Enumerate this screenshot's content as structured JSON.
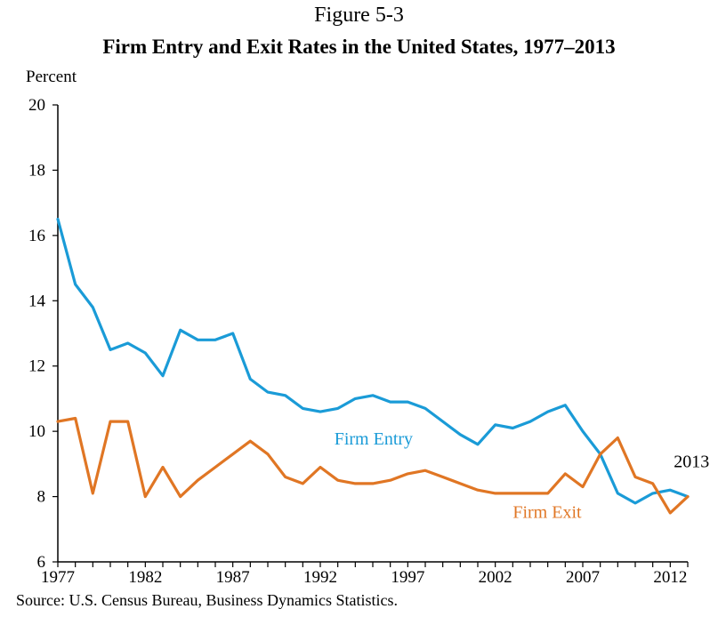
{
  "figure_label": "Figure 5-3",
  "chart_data": {
    "type": "line",
    "title": "Firm Entry and Exit Rates in the United States, 1977–2013",
    "ylabel": "Percent",
    "xlabel": "",
    "xlim": [
      1977,
      2013
    ],
    "ylim": [
      6,
      20
    ],
    "yticks": [
      6,
      8,
      10,
      12,
      14,
      16,
      18,
      20
    ],
    "xticks": [
      1977,
      1982,
      1987,
      1992,
      1997,
      2002,
      2007,
      2012
    ],
    "x": [
      1977,
      1978,
      1979,
      1980,
      1981,
      1982,
      1983,
      1984,
      1985,
      1986,
      1987,
      1988,
      1989,
      1990,
      1991,
      1992,
      1993,
      1994,
      1995,
      1996,
      1997,
      1998,
      1999,
      2000,
      2001,
      2002,
      2003,
      2004,
      2005,
      2006,
      2007,
      2008,
      2009,
      2010,
      2011,
      2012,
      2013
    ],
    "series": [
      {
        "name": "Firm Entry",
        "color": "#1a9bd7",
        "values": [
          16.5,
          14.5,
          13.8,
          12.5,
          12.7,
          12.4,
          11.7,
          13.1,
          12.8,
          12.8,
          13.0,
          11.6,
          11.2,
          11.1,
          10.7,
          10.6,
          10.7,
          11.0,
          11.1,
          10.9,
          10.9,
          10.7,
          10.3,
          9.9,
          9.6,
          10.2,
          10.1,
          10.3,
          10.6,
          10.8,
          10.0,
          9.3,
          8.1,
          7.8,
          8.1,
          8.2,
          8.0
        ]
      },
      {
        "name": "Firm Exit",
        "color": "#e07624",
        "values": [
          10.3,
          10.4,
          8.1,
          10.3,
          10.3,
          8.0,
          8.9,
          8.0,
          8.5,
          8.9,
          9.3,
          9.7,
          9.3,
          8.6,
          8.4,
          8.9,
          8.5,
          8.4,
          8.4,
          8.5,
          8.7,
          8.8,
          8.6,
          8.4,
          8.2,
          8.1,
          8.1,
          8.1,
          8.1,
          8.7,
          8.3,
          9.3,
          9.8,
          8.6,
          8.4,
          7.5,
          8.0
        ]
      }
    ],
    "annotations": [
      {
        "text": "2013",
        "x": 2012.2,
        "y": 8.9
      }
    ],
    "grid": false,
    "legend": "none (series labeled inline)"
  },
  "source": "Source: U.S. Census Bureau, Business Dynamics Statistics."
}
